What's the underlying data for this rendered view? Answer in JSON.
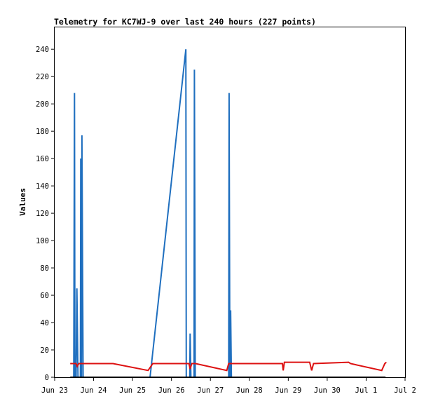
{
  "chart_data": {
    "type": "line",
    "title": "Telemetry for KC7WJ-9 over last 240 hours (227 points)",
    "xlabel": "",
    "ylabel": "Values",
    "x_tick_labels": [
      "Jun 23",
      "Jun 24",
      "Jun 25",
      "Jun 26",
      "Jun 27",
      "Jun 28",
      "Jun 29",
      "Jun 30",
      "Jul 1",
      "Jul 2"
    ],
    "y_ticks": [
      0,
      20,
      40,
      60,
      80,
      100,
      120,
      140,
      160,
      180,
      200,
      220,
      240
    ],
    "xlim": [
      0,
      9
    ],
    "ylim": [
      0,
      256
    ],
    "grid": false,
    "legend": "none",
    "colors": {
      "series_a": "#1f6fbf",
      "series_b": "#dd1111",
      "series_c": "#000000"
    },
    "series": [
      {
        "color": "#1f6fbf",
        "x": [
          0.49,
          0.51,
          0.52,
          0.55,
          0.57,
          0.6,
          0.66,
          0.67,
          0.69,
          0.7,
          0.73,
          2.36,
          2.45,
          3.37,
          3.38,
          3.4,
          3.47,
          3.48,
          3.5,
          3.58,
          3.59,
          3.61,
          4.47,
          4.48,
          4.5,
          4.51,
          4.52,
          4.54
        ],
        "y": [
          0,
          208,
          0,
          0,
          65,
          0,
          0,
          160,
          0,
          177,
          0,
          0,
          0,
          240,
          0,
          0,
          0,
          32,
          0,
          0,
          225,
          0,
          0,
          208,
          0,
          0,
          49,
          0
        ]
      },
      {
        "color": "#dd1111",
        "x": [
          0.4,
          0.55,
          0.58,
          0.62,
          0.68,
          1.5,
          2.4,
          2.52,
          2.55,
          3.45,
          3.48,
          3.52,
          3.55,
          3.62,
          4.42,
          4.47,
          4.5,
          5.85,
          5.87,
          5.9,
          6.55,
          6.6,
          6.65,
          7.55,
          7.6,
          8.4,
          8.48,
          8.52
        ],
        "y": [
          10,
          10,
          8,
          10,
          10,
          10,
          5,
          10,
          10,
          10,
          6,
          10,
          10,
          10,
          5,
          10,
          10,
          10,
          5,
          11,
          11,
          5,
          10,
          11,
          10,
          5,
          10,
          11
        ]
      },
      {
        "color": "#000000",
        "x": [
          0.4,
          8.5
        ],
        "y": [
          0,
          0
        ]
      }
    ]
  }
}
